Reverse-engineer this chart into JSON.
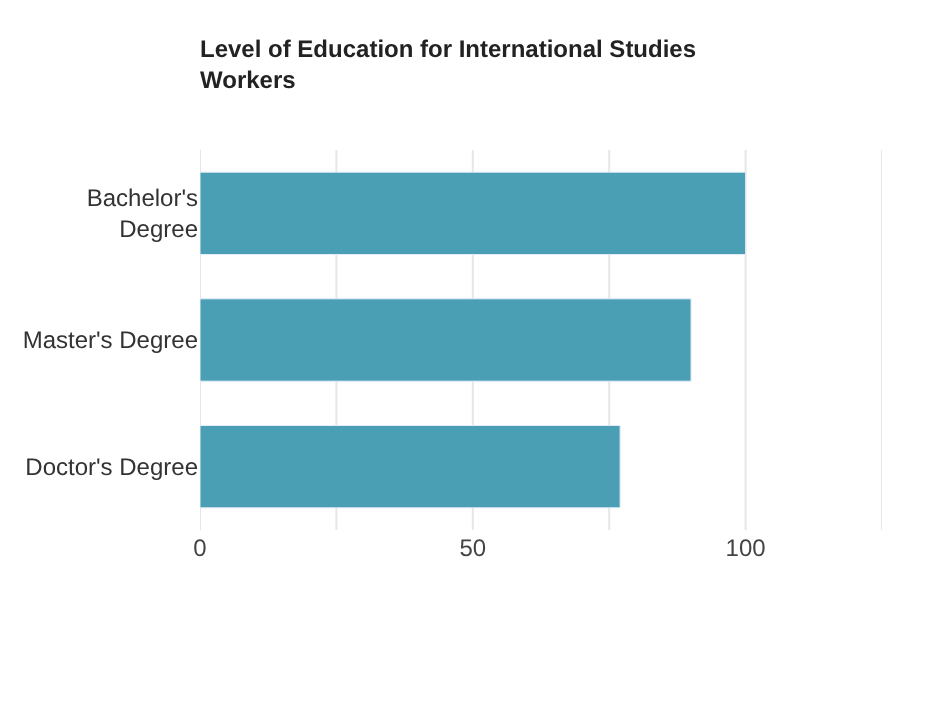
{
  "chart_data": {
    "type": "bar",
    "orientation": "horizontal",
    "title": "Level of Education for International Studies\nWorkers",
    "categories": [
      "Bachelor's\nDegree",
      "Master's Degree",
      "Doctor's Degree"
    ],
    "values": [
      100,
      90,
      77
    ],
    "color": "#4a9fb5",
    "xlim": [
      0,
      125
    ],
    "xticks": [
      0,
      {
        "value": 25,
        "label": null
      },
      50,
      {
        "value": 75,
        "label": null
      },
      100,
      {
        "value": 125,
        "label": null
      }
    ],
    "grid": "x",
    "legend": false
  }
}
